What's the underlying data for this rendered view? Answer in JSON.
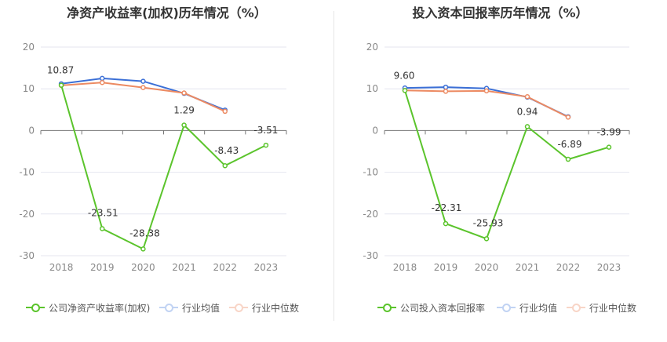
{
  "chart_data": [
    {
      "type": "line",
      "title": "净资产收益率(加权)历年情况（%）",
      "categories": [
        "2018",
        "2019",
        "2020",
        "2021",
        "2022",
        "2023"
      ],
      "ylim": [
        -30,
        20
      ],
      "yticks": [
        20,
        10,
        0,
        -10,
        -20,
        -30
      ],
      "grid": true,
      "legend_position": "bottom",
      "series": [
        {
          "name": "公司净资产收益率(加权)",
          "color": "#5bc42c",
          "values": [
            10.87,
            -23.51,
            -28.38,
            1.29,
            -8.43,
            -3.51
          ],
          "labels": [
            "10.87",
            "-23.51",
            "-28.38",
            "1.29",
            "-8.43",
            "-3.51"
          ]
        },
        {
          "name": "行业均值",
          "color": "#3b6fd6",
          "legend_color": "#8fb0ea",
          "values": [
            11.2,
            12.5,
            11.8,
            8.9,
            4.9,
            null
          ]
        },
        {
          "name": "行业中位数",
          "color": "#ec8a62",
          "legend_color": "#f4b49a",
          "values": [
            10.8,
            11.5,
            10.3,
            9.0,
            4.6,
            null
          ]
        }
      ]
    },
    {
      "type": "line",
      "title": "投入资本回报率历年情况（%）",
      "categories": [
        "2018",
        "2019",
        "2020",
        "2021",
        "2022",
        "2023"
      ],
      "ylim": [
        -30,
        20
      ],
      "yticks": [
        20,
        10,
        0,
        -10,
        -20,
        -30
      ],
      "grid": true,
      "legend_position": "bottom",
      "series": [
        {
          "name": "公司投入资本回报率",
          "color": "#5bc42c",
          "values": [
            9.6,
            -22.31,
            -25.93,
            0.94,
            -6.89,
            -3.99
          ],
          "labels": [
            "9.60",
            "-22.31",
            "-25.93",
            "0.94",
            "-6.89",
            "-3.99"
          ]
        },
        {
          "name": "行业均值",
          "color": "#3b6fd6",
          "legend_color": "#8fb0ea",
          "values": [
            10.2,
            10.4,
            10.1,
            8.0,
            3.3,
            null
          ]
        },
        {
          "name": "行业中位数",
          "color": "#ec8a62",
          "legend_color": "#f4b49a",
          "values": [
            9.6,
            9.4,
            9.5,
            8.1,
            3.2,
            null
          ]
        }
      ]
    }
  ]
}
